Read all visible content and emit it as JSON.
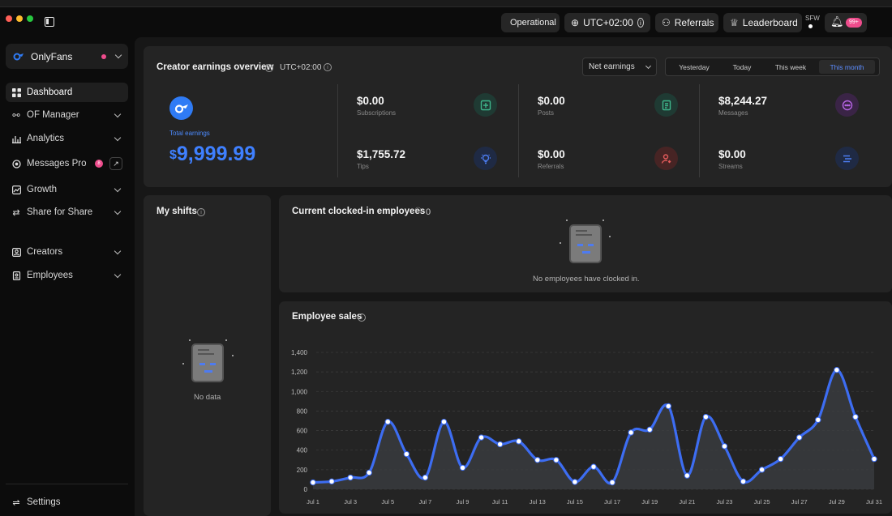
{
  "topbar": {
    "status_label": "Operational",
    "timezone_label": "UTC+02:00",
    "referrals_label": "Referrals",
    "leaderboard_label": "Leaderboard",
    "sfw_label": "SFW",
    "notifications_badge": "99+"
  },
  "sidebar": {
    "account_name": "OnlyFans",
    "items": [
      {
        "label": "Dashboard",
        "icon": "grid-icon"
      },
      {
        "label": "OF Manager",
        "icon": "link-icon"
      },
      {
        "label": "Analytics",
        "icon": "bar-chart-icon"
      },
      {
        "label": "Messages Pro",
        "icon": "message-icon",
        "badge": "8"
      },
      {
        "label": "Growth",
        "icon": "growth-icon"
      },
      {
        "label": "Share for Share",
        "icon": "share-icon"
      },
      {
        "label": "Creators",
        "icon": "user-card-icon"
      },
      {
        "label": "Employees",
        "icon": "badge-icon"
      }
    ],
    "settings_label": "Settings"
  },
  "overview": {
    "title": "Creator earnings overview",
    "timezone": "UTC+02:00",
    "select_value": "Net earnings",
    "ranges": [
      "Yesterday",
      "Today",
      "This week",
      "This month"
    ],
    "active_range": "This month",
    "total_label": "Total earnings",
    "total_currency": "$",
    "total_value": "9,999.99",
    "stats": [
      {
        "value": "$0.00",
        "label": "Subscriptions",
        "icon": "subscription-icon",
        "color": "#3fb68b"
      },
      {
        "value": "$1,755.72",
        "label": "Tips",
        "icon": "lightbulb-icon",
        "color": "#4c7cf0"
      },
      {
        "value": "$0.00",
        "label": "Posts",
        "icon": "document-icon",
        "color": "#3fb68b"
      },
      {
        "value": "$0.00",
        "label": "Referrals",
        "icon": "user-referral-icon",
        "color": "#e35b5b"
      },
      {
        "value": "$8,244.27",
        "label": "Messages",
        "icon": "chat-icon",
        "color": "#b865e6"
      },
      {
        "value": "$0.00",
        "label": "Streams",
        "icon": "stream-icon",
        "color": "#4c7cf0"
      }
    ]
  },
  "shifts": {
    "title": "My shifts",
    "empty_text": "No data"
  },
  "clocked": {
    "title": "Current clocked-in employees",
    "count": "0",
    "empty_text": "No employees have clocked in."
  },
  "sales": {
    "title": "Employee sales"
  },
  "chart_data": {
    "type": "area",
    "title": "Employee sales",
    "x": [
      "Jul 1",
      "Jul 2",
      "Jul 3",
      "Jul 4",
      "Jul 5",
      "Jul 6",
      "Jul 7",
      "Jul 8",
      "Jul 9",
      "Jul 10",
      "Jul 11",
      "Jul 12",
      "Jul 13",
      "Jul 14",
      "Jul 15",
      "Jul 16",
      "Jul 17",
      "Jul 18",
      "Jul 19",
      "Jul 20",
      "Jul 21",
      "Jul 22",
      "Jul 23",
      "Jul 24",
      "Jul 25",
      "Jul 26",
      "Jul 27",
      "Jul 28",
      "Jul 29",
      "Jul 30",
      "Jul 31"
    ],
    "x_tick_labels": [
      "Jul 1",
      "Jul 3",
      "Jul 5",
      "Jul 7",
      "Jul 9",
      "Jul 11",
      "Jul 13",
      "Jul 15",
      "Jul 17",
      "Jul 19",
      "Jul 21",
      "Jul 23",
      "Jul 25",
      "Jul 27",
      "Jul 29",
      "Jul 31"
    ],
    "values": [
      70,
      80,
      120,
      170,
      690,
      360,
      120,
      690,
      220,
      530,
      460,
      490,
      300,
      300,
      75,
      230,
      70,
      580,
      610,
      850,
      140,
      740,
      440,
      80,
      200,
      310,
      530,
      710,
      1220,
      740,
      310
    ],
    "ylim": [
      0,
      1400
    ],
    "yticks": [
      0,
      200,
      400,
      600,
      800,
      "1,000",
      "1,200",
      "1,400"
    ],
    "grid": true,
    "line_color": "#3d6df2"
  }
}
